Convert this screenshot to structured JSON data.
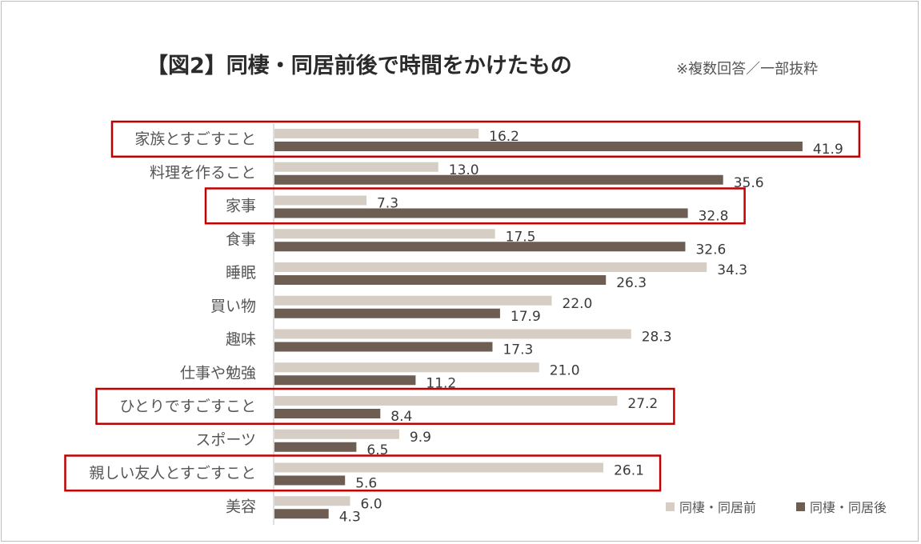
{
  "title": "【図2】同棲・同居前後で時間をかけたもの",
  "note": "※複数回答／一部抜粋",
  "colors": {
    "before": "#d6cdc4",
    "after": "#6e5d52",
    "highlight": "#c00000",
    "axis": "#bfbfbf"
  },
  "chart_data": {
    "type": "bar",
    "orientation": "horizontal",
    "title": "【図2】同棲・同居前後で時間をかけたもの",
    "categories": [
      "家族とすごすこと",
      "料理を作ること",
      "家事",
      "食事",
      "睡眠",
      "買い物",
      "趣味",
      "仕事や勉強",
      "ひとりですごすこと",
      "スポーツ",
      "親しい友人とすごすこと",
      "美容"
    ],
    "series": [
      {
        "name": "同棲・同居前",
        "values": [
          16.2,
          13.0,
          7.3,
          17.5,
          34.3,
          22.0,
          28.3,
          21.0,
          27.2,
          9.9,
          26.1,
          6.0
        ]
      },
      {
        "name": "同棲・同居後",
        "values": [
          41.9,
          35.6,
          32.8,
          32.6,
          26.3,
          17.9,
          17.3,
          11.2,
          8.4,
          6.5,
          5.6,
          4.3
        ]
      }
    ],
    "highlighted_categories": [
      "家族とすごすこと",
      "家事",
      "ひとりですごすこと",
      "親しい友人とすごすこと"
    ],
    "legend_position": "bottom-right",
    "xlim": [
      0,
      45
    ]
  }
}
